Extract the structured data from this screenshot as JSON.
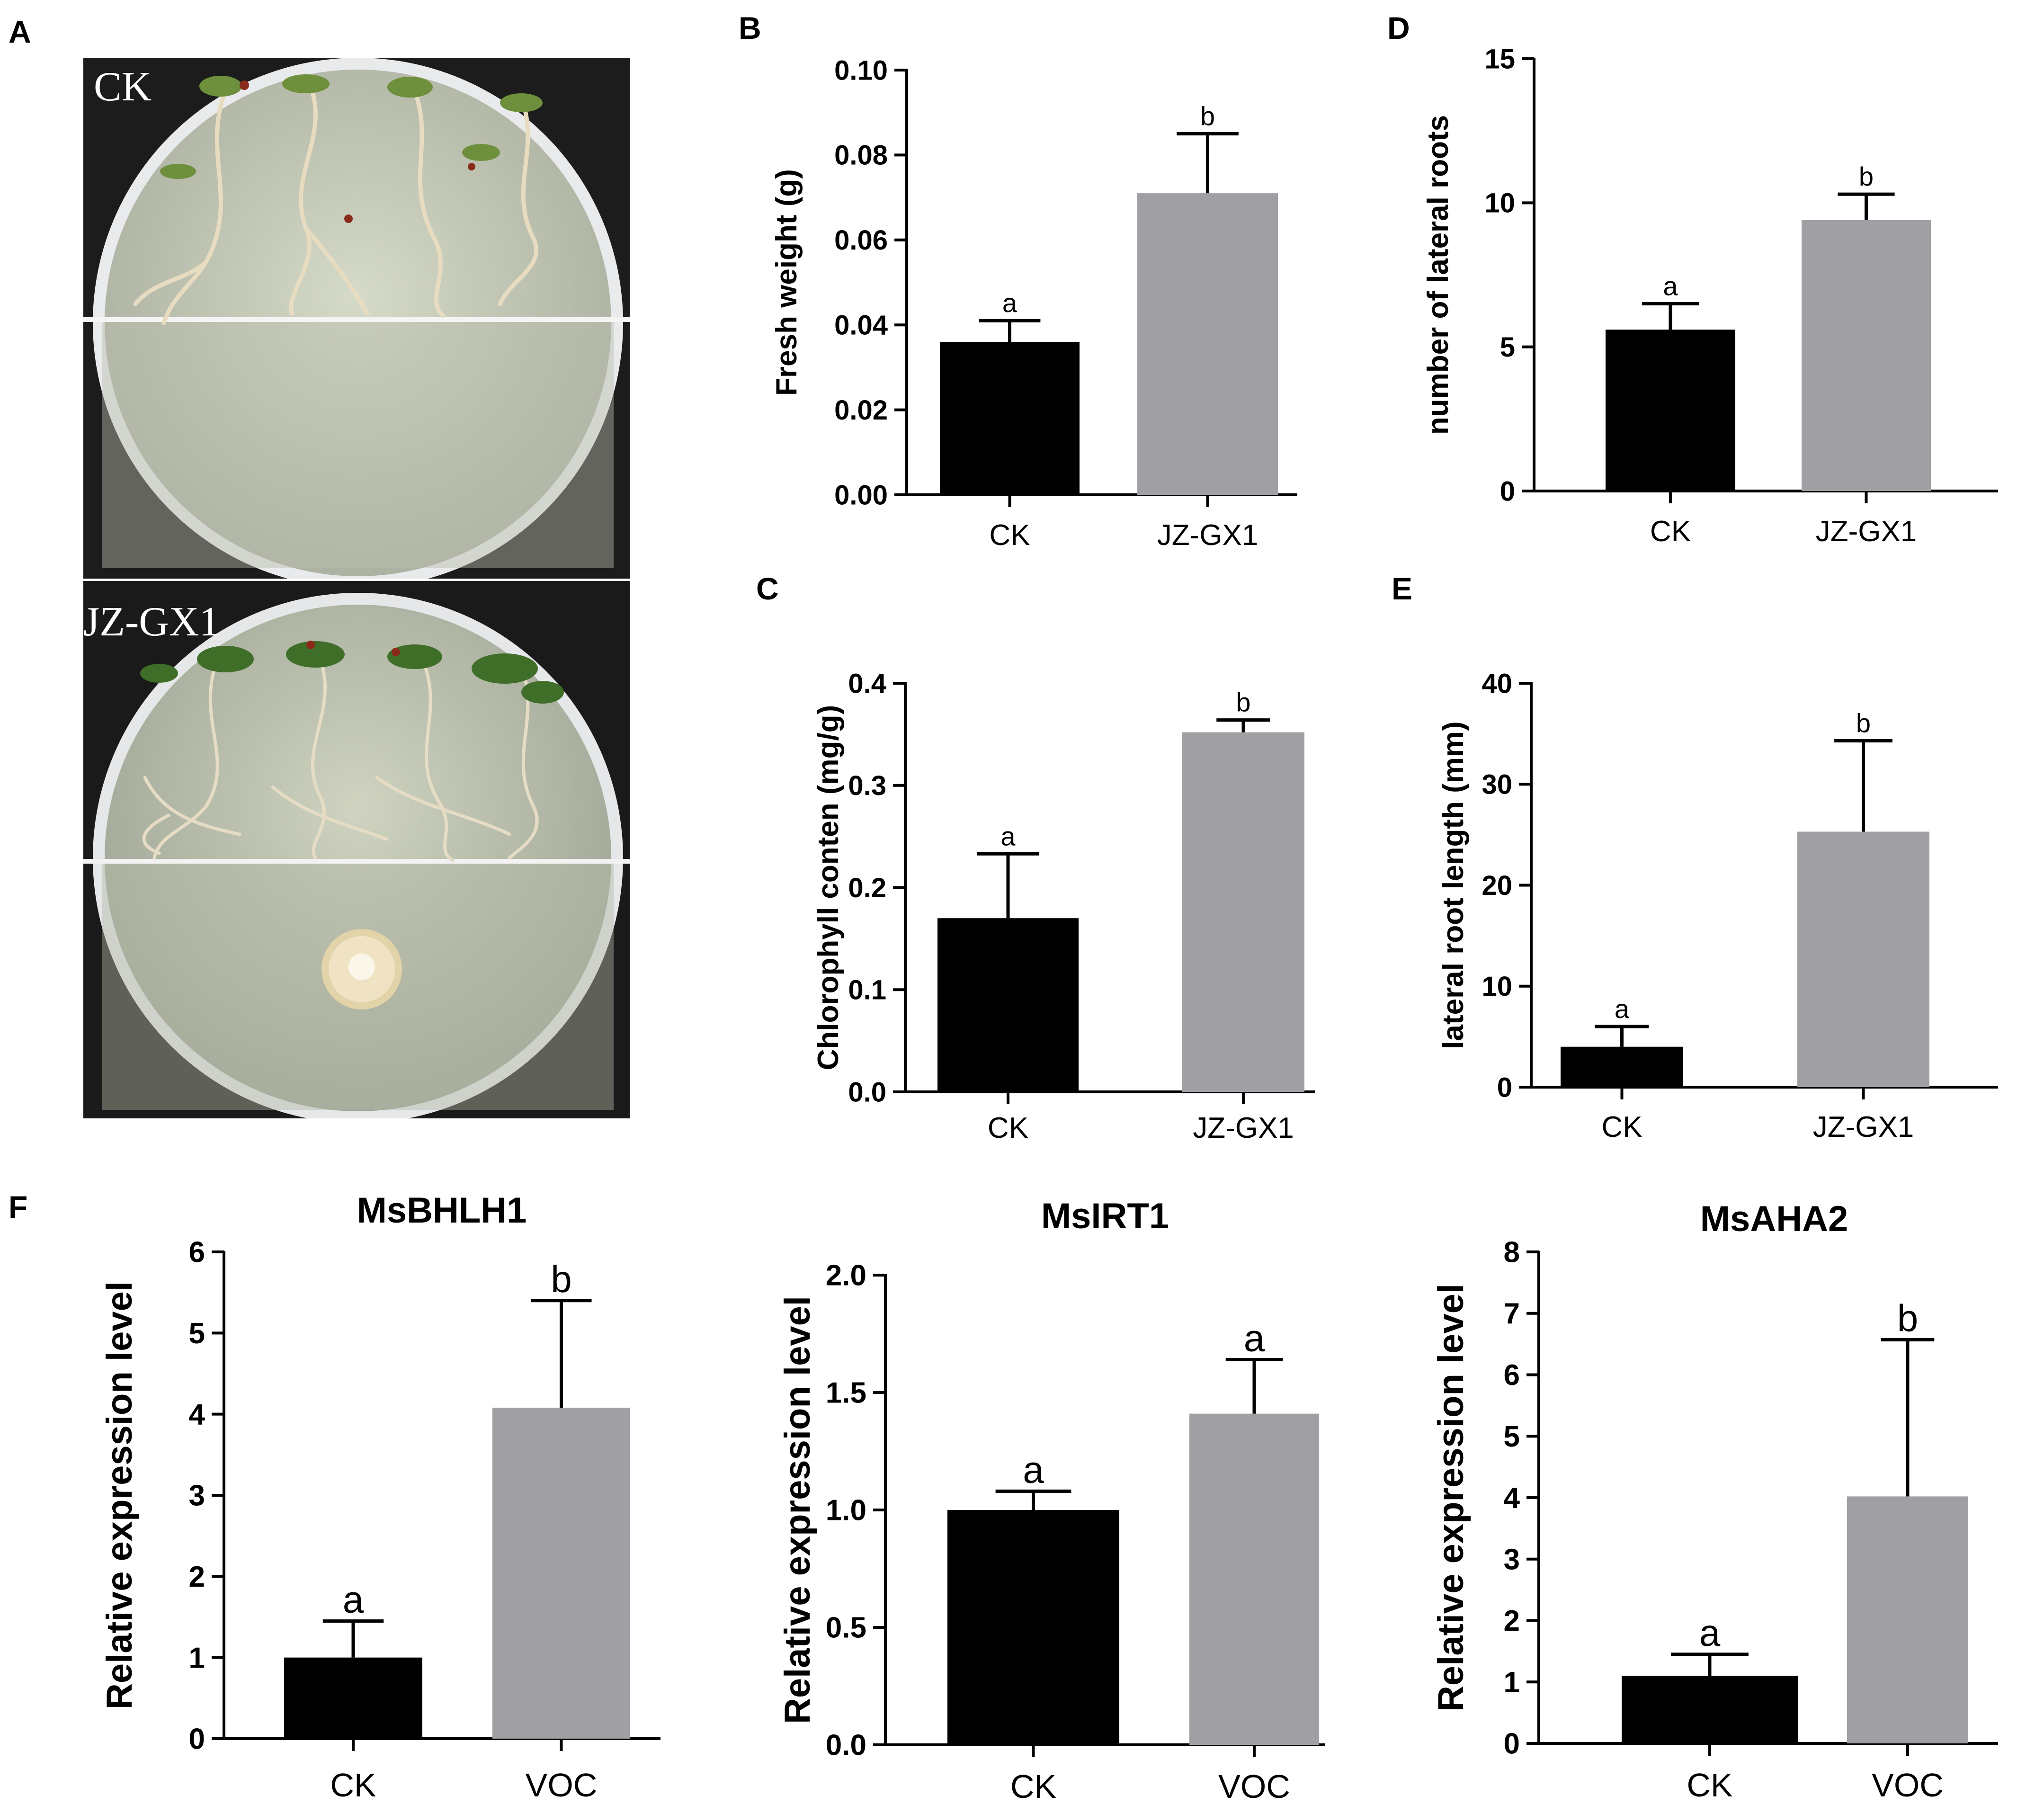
{
  "panel_labels": [
    "A",
    "B",
    "C",
    "D",
    "E",
    "F"
  ],
  "photo": {
    "top_label": "CK",
    "bottom_label": "JZ-GX1"
  },
  "colors": {
    "bar_ck": "#000000",
    "bar_treatment": "#a0a0a4",
    "axis": "#000000",
    "photo_background": "#1c1c1c",
    "agar": "#c9cdb8",
    "colony": "#efe3c4"
  },
  "chart_data": [
    {
      "id": "B",
      "type": "bar",
      "title": "",
      "ylabel": "Fresh weight (g)",
      "xlabel": "",
      "categories": [
        "CK",
        "JZ-GX1"
      ],
      "values": [
        0.036,
        0.071
      ],
      "errors": [
        0.005,
        0.014
      ],
      "letters": [
        "a",
        "b"
      ],
      "ylim": [
        0,
        0.1
      ],
      "yticks": [
        "0.00",
        "0.02",
        "0.04",
        "0.06",
        "0.08",
        "0.10"
      ],
      "grid": false,
      "legend": "none"
    },
    {
      "id": "D",
      "type": "bar",
      "title": "",
      "ylabel": "number of lateral roots",
      "xlabel": "",
      "categories": [
        "CK",
        "JZ-GX1"
      ],
      "values": [
        5.6,
        9.4
      ],
      "errors": [
        0.9,
        0.9
      ],
      "letters": [
        "a",
        "b"
      ],
      "ylim": [
        0,
        15
      ],
      "yticks": [
        "0",
        "5",
        "10",
        "15"
      ],
      "grid": false,
      "legend": "none"
    },
    {
      "id": "C",
      "type": "bar",
      "title": "",
      "ylabel": "Chlorophyll conten (mg/g)",
      "xlabel": "",
      "categories": [
        "CK",
        "JZ-GX1"
      ],
      "values": [
        0.17,
        0.352
      ],
      "errors": [
        0.063,
        0.012
      ],
      "letters": [
        "a",
        "b"
      ],
      "ylim": [
        0,
        0.4
      ],
      "yticks": [
        "0.0",
        "0.1",
        "0.2",
        "0.3",
        "0.4"
      ],
      "grid": false,
      "legend": "none"
    },
    {
      "id": "E",
      "type": "bar",
      "title": "",
      "ylabel": "lateral root length (mm)",
      "xlabel": "",
      "categories": [
        "CK",
        "JZ-GX1"
      ],
      "values": [
        4.0,
        25.3
      ],
      "errors": [
        2.0,
        9.0
      ],
      "letters": [
        "a",
        "b"
      ],
      "ylim": [
        0,
        40
      ],
      "yticks": [
        "0",
        "10",
        "20",
        "30",
        "40"
      ],
      "grid": false,
      "legend": "none"
    },
    {
      "id": "F1",
      "type": "bar",
      "title": "MsBHLH1",
      "ylabel": "Relative expression level",
      "xlabel": "",
      "categories": [
        "CK",
        "VOC"
      ],
      "values": [
        1.0,
        4.08
      ],
      "errors": [
        0.45,
        1.32
      ],
      "letters": [
        "a",
        "b"
      ],
      "ylim": [
        0,
        6
      ],
      "yticks": [
        "0",
        "1",
        "2",
        "3",
        "4",
        "5",
        "6"
      ],
      "grid": false,
      "legend": "none"
    },
    {
      "id": "F2",
      "type": "bar",
      "title": "MsIRT1",
      "ylabel": "Relative expression level",
      "xlabel": "",
      "categories": [
        "CK",
        "VOC"
      ],
      "values": [
        1.0,
        1.41
      ],
      "errors": [
        0.08,
        0.23
      ],
      "letters": [
        "a",
        "a"
      ],
      "ylim": [
        0,
        2
      ],
      "yticks": [
        "0.0",
        "0.5",
        "1.0",
        "1.5",
        "2.0"
      ],
      "grid": false,
      "legend": "none"
    },
    {
      "id": "F3",
      "type": "bar",
      "title": "MsAHA2",
      "ylabel": "Relative expression level",
      "xlabel": "",
      "categories": [
        "CK",
        "VOC"
      ],
      "values": [
        1.1,
        4.02
      ],
      "errors": [
        0.35,
        2.55
      ],
      "letters": [
        "a",
        "b"
      ],
      "ylim": [
        0,
        8
      ],
      "yticks": [
        "0",
        "1",
        "2",
        "3",
        "4",
        "5",
        "6",
        "7",
        "8"
      ],
      "grid": false,
      "legend": "none"
    }
  ]
}
